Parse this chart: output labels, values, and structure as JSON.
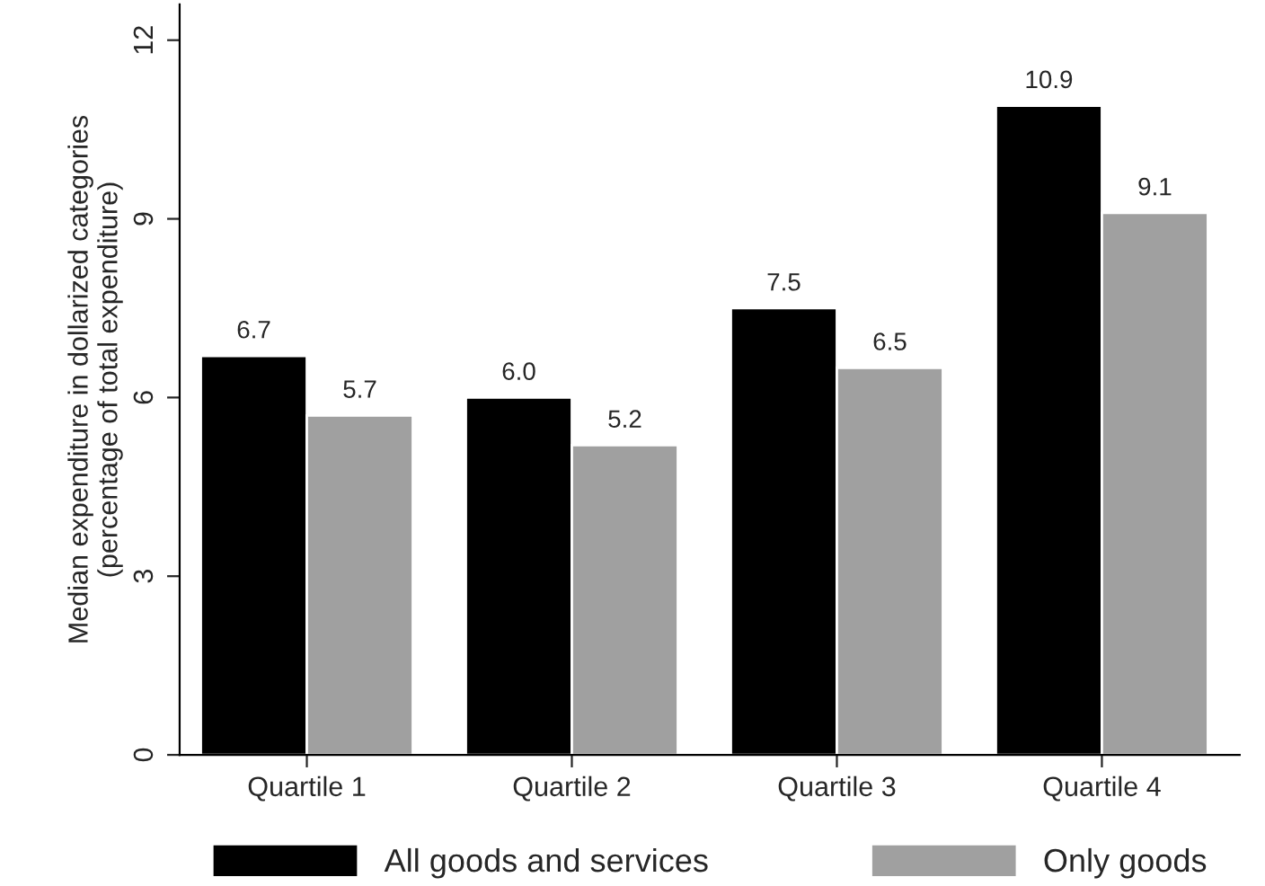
{
  "chart_data": {
    "type": "bar",
    "ylabel": "Median expenditure in dollarized categories\n(percentage of total expenditure)",
    "categories": [
      "Quartile 1",
      "Quartile 2",
      "Quartile 3",
      "Quartile 4"
    ],
    "series": [
      {
        "name": "All goods and services",
        "color": "#000000",
        "values": [
          6.7,
          6.0,
          7.5,
          10.9
        ],
        "value_labels": [
          "6.7",
          "6.0",
          "7.5",
          "10.9"
        ]
      },
      {
        "name": "Only goods",
        "color": "#a0a0a0",
        "values": [
          5.7,
          5.2,
          6.5,
          9.1
        ],
        "value_labels": [
          "5.7",
          "5.2",
          "6.5",
          "9.1"
        ]
      }
    ],
    "ylim": [
      0,
      12.6
    ],
    "yticks": [
      0,
      3,
      6,
      9,
      12
    ],
    "grid": false,
    "legend": "bottom"
  }
}
